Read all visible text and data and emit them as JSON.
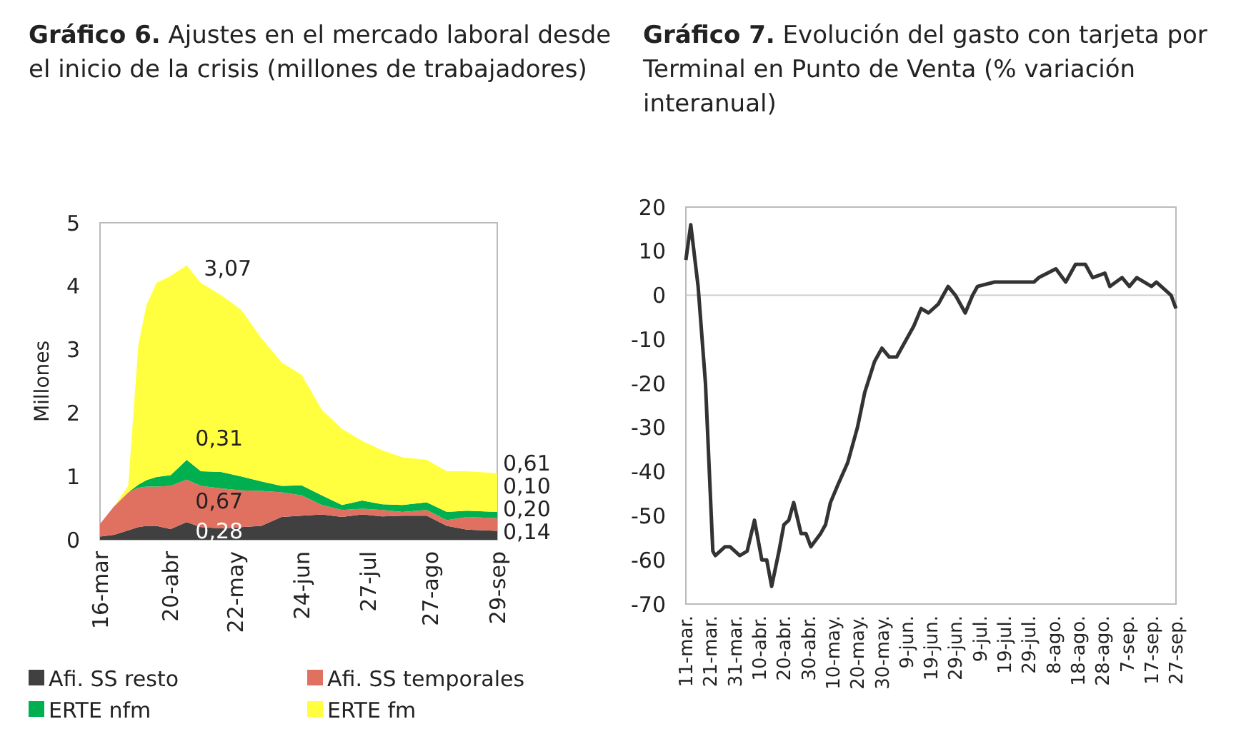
{
  "chart_data": [
    {
      "type": "area",
      "stacked": true,
      "title": "Gráfico 6. Ajustes en el mercado laboral desde el inicio de la crisis (millones de trabajadores)",
      "ylabel": "Millones",
      "x": [
        "--03-16",
        "--03-23",
        "--03-30",
        "--04-04",
        "--04-08",
        "--04-13",
        "--04-20",
        "--04-28",
        "--05-05",
        "--05-15",
        "--05-25",
        "--06-04",
        "--06-14",
        "--06-24",
        "--07-04",
        "--07-14",
        "--07-24",
        "--08-03",
        "--08-13",
        "--08-25",
        "--09-04",
        "--09-14",
        "--09-29"
      ],
      "series": [
        {
          "name": "Afi. SS resto",
          "color": "#404040",
          "value_labels": [
            null,
            null,
            null,
            null,
            null,
            null,
            null,
            "0,28",
            null,
            null,
            null,
            null,
            null,
            null,
            null,
            null,
            null,
            null,
            null,
            null,
            null,
            null,
            "0,14"
          ],
          "values": [
            0.05,
            0.08,
            0.15,
            0.2,
            0.22,
            0.22,
            0.17,
            0.28,
            0.2,
            0.18,
            0.2,
            0.22,
            0.36,
            0.38,
            0.4,
            0.36,
            0.4,
            0.37,
            0.38,
            0.38,
            0.22,
            0.16,
            0.14
          ]
        },
        {
          "name": "Afi. SS temporales",
          "color": "#e07060",
          "value_labels": [
            null,
            null,
            null,
            null,
            null,
            null,
            null,
            "0,67",
            null,
            null,
            null,
            null,
            null,
            null,
            null,
            null,
            null,
            null,
            null,
            null,
            null,
            null,
            "0,20"
          ],
          "values": [
            0.2,
            0.45,
            0.6,
            0.62,
            0.62,
            0.62,
            0.68,
            0.67,
            0.65,
            0.63,
            0.58,
            0.55,
            0.39,
            0.32,
            0.15,
            0.11,
            0.09,
            0.1,
            0.06,
            0.09,
            0.09,
            0.2,
            0.2
          ]
        },
        {
          "name": "ERTE nfm",
          "color": "#00b050",
          "value_labels": [
            null,
            null,
            null,
            null,
            null,
            null,
            null,
            "0,31",
            null,
            null,
            null,
            null,
            null,
            null,
            null,
            null,
            null,
            null,
            null,
            null,
            null,
            null,
            "0,10"
          ],
          "values": [
            0,
            0,
            0,
            0.05,
            0.1,
            0.15,
            0.17,
            0.31,
            0.23,
            0.26,
            0.22,
            0.15,
            0.1,
            0.16,
            0.15,
            0.08,
            0.13,
            0.09,
            0.11,
            0.12,
            0.13,
            0.1,
            0.1
          ]
        },
        {
          "name": "ERTE fm",
          "color": "#ffff40",
          "value_labels": [
            null,
            null,
            null,
            null,
            null,
            null,
            null,
            "3,07",
            null,
            null,
            null,
            null,
            null,
            null,
            null,
            null,
            null,
            null,
            null,
            null,
            null,
            null,
            "0,61"
          ],
          "values": [
            0,
            0,
            0.1,
            2.2,
            2.76,
            3.06,
            3.14,
            3.07,
            2.97,
            2.79,
            2.63,
            2.26,
            1.95,
            1.74,
            1.35,
            1.2,
            0.94,
            0.85,
            0.75,
            0.67,
            0.64,
            0.62,
            0.61
          ]
        }
      ],
      "xlim": [
        "--03-16",
        "--09-29"
      ],
      "xticks": [
        {
          "value": "--03-16",
          "label": "16-mar"
        },
        {
          "value": "--04-20",
          "label": "20-abr"
        },
        {
          "value": "--05-22",
          "label": "22-may"
        },
        {
          "value": "--06-24",
          "label": "24-jun"
        },
        {
          "value": "--07-27",
          "label": "27-jul"
        },
        {
          "value": "--08-27",
          "label": "27-ago"
        },
        {
          "value": "--09-29",
          "label": "29-sep"
        }
      ],
      "ylim": [
        0,
        5
      ],
      "yticks": [
        0,
        1,
        2,
        3,
        4,
        5
      ],
      "grid": false,
      "legend": "bottom"
    },
    {
      "type": "line",
      "title": "Gráfico 7. Evolución del gasto con tarjeta por Terminal en Punto de Venta (% variación interanual)",
      "x": [
        "--03-11",
        "--03-13",
        "--03-16",
        "--03-19",
        "--03-22",
        "--03-23",
        "--03-27",
        "--03-29",
        "--04-02",
        "--04-05",
        "--04-08",
        "--04-11",
        "--04-13",
        "--04-15",
        "--04-18",
        "--04-20",
        "--04-22",
        "--04-24",
        "--04-27",
        "--04-29",
        "--05-01",
        "--05-05",
        "--05-07",
        "--05-09",
        "--05-12",
        "--05-16",
        "--05-20",
        "--05-23",
        "--05-27",
        "--05-30",
        "--06-02",
        "--06-05",
        "--06-09",
        "--06-12",
        "--06-15",
        "--06-18",
        "--06-22",
        "--06-24",
        "--06-26",
        "--06-29",
        "--07-03",
        "--07-06",
        "--07-08",
        "--07-15",
        "--07-21",
        "--07-31",
        "--08-02",
        "--08-09",
        "--08-13",
        "--08-17",
        "--08-21",
        "--08-24",
        "--08-29",
        "--08-31",
        "--09-05",
        "--09-08",
        "--09-11",
        "--09-17",
        "--09-19",
        "--09-23",
        "--09-25",
        "--09-27"
      ],
      "series": [
        {
          "color": "#333333",
          "values": [
            8,
            16,
            2,
            -20,
            -58,
            -59,
            -57,
            -57,
            -59,
            -58,
            -51,
            -60,
            -60,
            -66,
            -58,
            -52,
            -51,
            -47,
            -54,
            -54,
            -57,
            -54,
            -52,
            -47,
            -43,
            -38,
            -30,
            -22,
            -15,
            -12,
            -14,
            -14,
            -10,
            -7,
            -3,
            -4,
            -2,
            0,
            2,
            0,
            -4,
            0,
            2,
            3,
            3,
            3,
            4,
            6,
            3,
            7,
            7,
            4,
            5,
            2,
            4,
            2,
            4,
            2,
            3,
            1,
            0,
            -3
          ]
        }
      ],
      "xlim": [
        "--03-11",
        "--09-27"
      ],
      "xticks": [
        {
          "value": "--03-11",
          "label": "11-mar."
        },
        {
          "value": "--03-21",
          "label": "21-mar."
        },
        {
          "value": "--03-31",
          "label": "31-mar."
        },
        {
          "value": "--04-10",
          "label": "10-abr."
        },
        {
          "value": "--04-20",
          "label": "20-abr."
        },
        {
          "value": "--04-30",
          "label": "30-abr."
        },
        {
          "value": "--05-10",
          "label": "10-may."
        },
        {
          "value": "--05-20",
          "label": "20-may."
        },
        {
          "value": "--05-30",
          "label": "30-may."
        },
        {
          "value": "--06-09",
          "label": "9-jun."
        },
        {
          "value": "--06-19",
          "label": "19-jun."
        },
        {
          "value": "--06-29",
          "label": "29-jun."
        },
        {
          "value": "--07-09",
          "label": "9-jul."
        },
        {
          "value": "--07-19",
          "label": "19-jul."
        },
        {
          "value": "--07-29",
          "label": "29-jul."
        },
        {
          "value": "--08-08",
          "label": "8-ago."
        },
        {
          "value": "--08-18",
          "label": "18-ago."
        },
        {
          "value": "--08-28",
          "label": "28-ago."
        },
        {
          "value": "--09-07",
          "label": "7-sep."
        },
        {
          "value": "--09-17",
          "label": "17-sep."
        },
        {
          "value": "--09-27",
          "label": "27-sep."
        }
      ],
      "ylim": [
        -70,
        20
      ],
      "yticks": [
        -70,
        -60,
        -50,
        -40,
        -30,
        -20,
        -10,
        0,
        10,
        20
      ],
      "grid": false,
      "ref_lines": [
        {
          "axis": "y",
          "value": 0,
          "color": "#cccccc"
        }
      ],
      "legend": false,
      "line_style": "solid",
      "marker": "none"
    }
  ]
}
